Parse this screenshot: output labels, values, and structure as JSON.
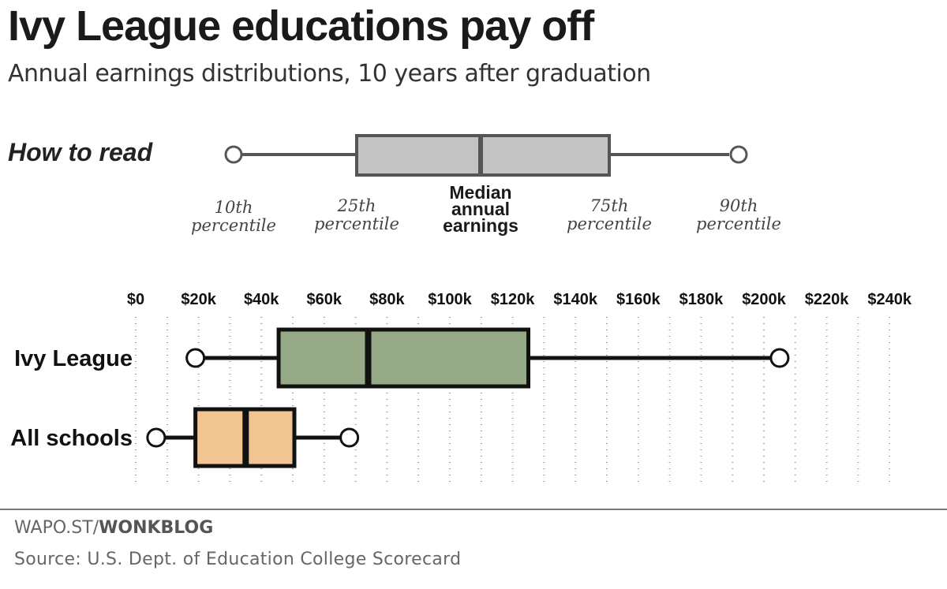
{
  "title": "Ivy League educations pay off",
  "subtitle": "Annual earnings distributions, 10 years after graduation",
  "legend": {
    "heading": "How to read",
    "p10": [
      "10th",
      "percentile"
    ],
    "p25": [
      "25th",
      "percentile"
    ],
    "median": [
      "Median",
      "annual",
      "earnings"
    ],
    "p75": [
      "75th",
      "percentile"
    ],
    "p90": [
      "90th",
      "percentile"
    ]
  },
  "footer": {
    "url_prefix": "WAPO.ST/",
    "url_bold": "WONKBLOG",
    "source": "Source: U.S. Dept. of Education College Scorecard"
  },
  "colors": {
    "ivy_fill": "#97aa87",
    "all_fill": "#f0c592",
    "guide_fill": "#c4c4c4",
    "stroke": "#111111",
    "guide_stroke": "#555555"
  },
  "chart_data": {
    "type": "boxplot",
    "title": "Ivy League educations pay off",
    "subtitle": "Annual earnings distributions, 10 years after graduation",
    "xlim": [
      0,
      250000
    ],
    "tick_values": [
      0,
      20000,
      40000,
      60000,
      80000,
      100000,
      120000,
      140000,
      160000,
      180000,
      200000,
      220000,
      240000
    ],
    "tick_labels": [
      "$0",
      "$20k",
      "$40k",
      "$60k",
      "$80k",
      "$100k",
      "$120k",
      "$140k",
      "$160k",
      "$180k",
      "$200k",
      "$220k",
      "$240k"
    ],
    "grid": "dotted vertical",
    "series": [
      {
        "name": "Ivy League",
        "p10": 19000,
        "p25": 45500,
        "median": 74000,
        "p75": 125000,
        "p90": 205000
      },
      {
        "name": "All schools",
        "p10": 6500,
        "p25": 19000,
        "median": 35000,
        "p75": 50500,
        "p90": 68000
      }
    ]
  }
}
